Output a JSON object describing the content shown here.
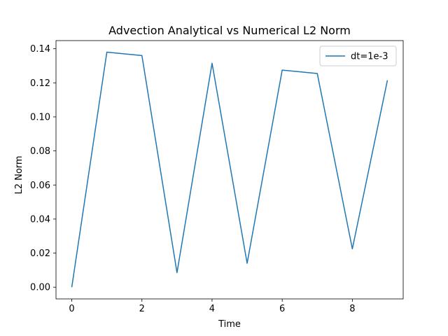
{
  "chart_data": {
    "type": "line",
    "title": "Advection Analytical vs Numerical L2 Norm",
    "xlabel": "Time",
    "ylabel": "L2 Norm",
    "xlim": [
      -0.45,
      9.45
    ],
    "ylim": [
      -0.0069,
      0.1448
    ],
    "xticks": [
      0,
      2,
      4,
      6,
      8
    ],
    "xtick_labels": [
      "0",
      "2",
      "4",
      "6",
      "8"
    ],
    "yticks": [
      0.0,
      0.02,
      0.04,
      0.06,
      0.08,
      0.1,
      0.12,
      0.14
    ],
    "ytick_labels": [
      "0.00",
      "0.02",
      "0.04",
      "0.06",
      "0.08",
      "0.10",
      "0.12",
      "0.14"
    ],
    "grid": false,
    "legend_position": "top-right",
    "series": [
      {
        "name": "dt=1e-3",
        "color": "#1f77b4",
        "x": [
          0,
          1,
          2,
          3,
          4,
          5,
          6,
          7,
          8,
          9
        ],
        "y": [
          0.0,
          0.138,
          0.136,
          0.0085,
          0.1315,
          0.014,
          0.1275,
          0.1255,
          0.0225,
          0.1215
        ]
      }
    ]
  }
}
